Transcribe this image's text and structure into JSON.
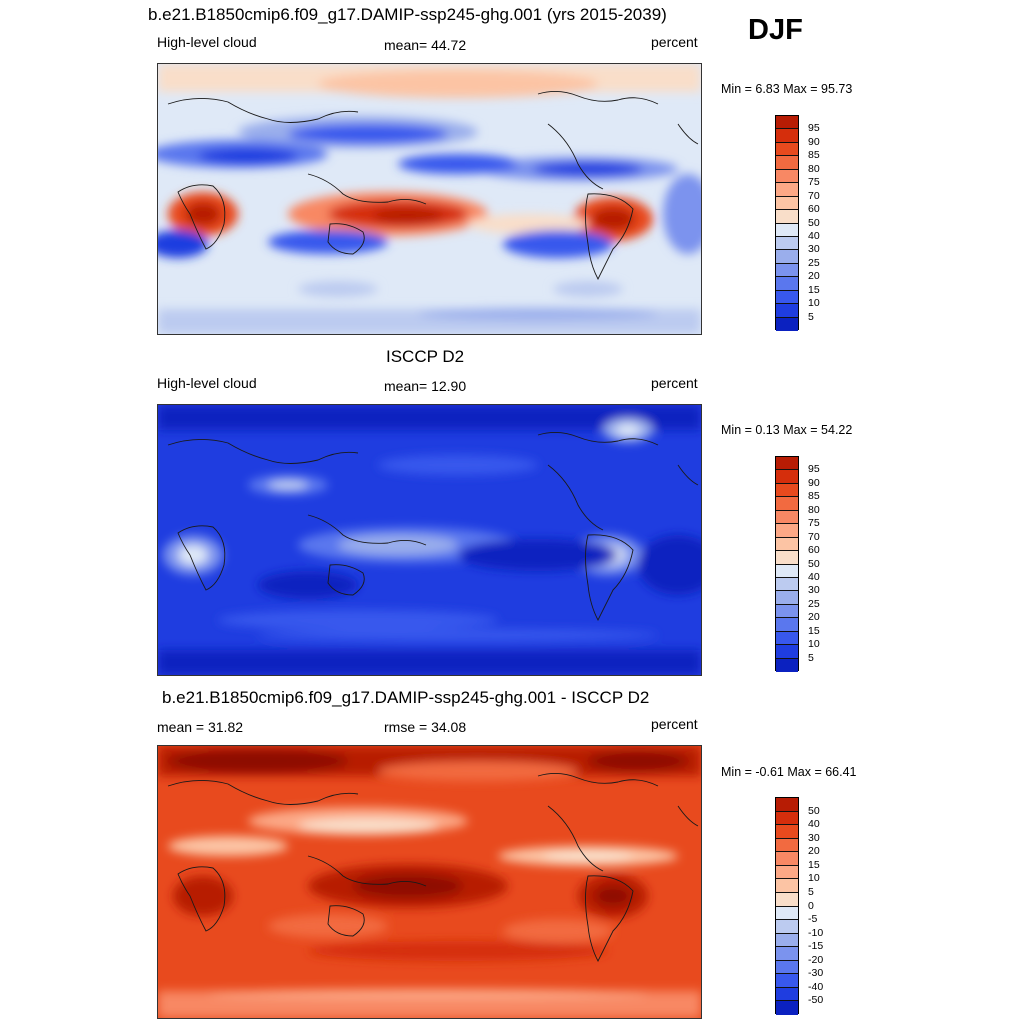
{
  "season": "DJF",
  "palette": {
    "positive": [
      "#f9dec9",
      "#fcc4a4",
      "#fca886",
      "#f88864",
      "#f26a40",
      "#e84a1e",
      "#d52e0c",
      "#b71c04",
      "#8e0a00"
    ],
    "negative": [
      "#dfe9f7",
      "#bccbf0",
      "#9aaeec",
      "#7b93ee",
      "#5a77ee",
      "#3858ed",
      "#1f3de0",
      "#0b21c0",
      "#020d8a"
    ]
  },
  "panels": [
    {
      "id": "model",
      "title": "b.e21.B1850cmip6.f09_g17.DAMIP-ssp245-ghg.001 (yrs 2015-2039)",
      "left_label": "High-level cloud",
      "center_label": "mean=  44.72",
      "units": "percent",
      "minmax": "Min =   6.83 Max =  95.73",
      "colorbar_labels": [
        "95",
        "90",
        "85",
        "80",
        "75",
        "70",
        "60",
        "50",
        "40",
        "30",
        "25",
        "20",
        "15",
        "10",
        "5"
      ]
    },
    {
      "id": "obs",
      "title": "ISCCP D2",
      "left_label": "High-level cloud",
      "center_label": "mean=  12.90",
      "units": "percent",
      "minmax": "Min =   0.13 Max =  54.22",
      "colorbar_labels": [
        "95",
        "90",
        "85",
        "80",
        "75",
        "70",
        "60",
        "50",
        "40",
        "30",
        "25",
        "20",
        "15",
        "10",
        "5"
      ]
    },
    {
      "id": "diff",
      "title": "b.e21.B1850cmip6.f09_g17.DAMIP-ssp245-ghg.001 - ISCCP D2",
      "left_label": "mean =  31.82",
      "center_label": "rmse =  34.08",
      "units": "percent",
      "minmax": "Min =  -0.61 Max =  66.41",
      "colorbar_labels": [
        "50",
        "40",
        "30",
        "20",
        "15",
        "10",
        "5",
        "0",
        "-5",
        "-10",
        "-15",
        "-20",
        "-30",
        "-40",
        "-50"
      ]
    }
  ]
}
